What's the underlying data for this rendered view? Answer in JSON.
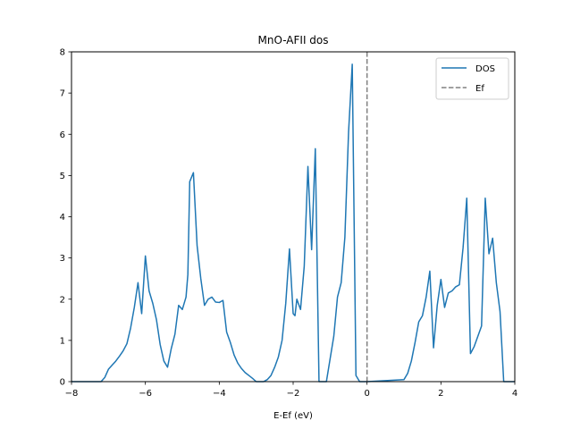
{
  "chart_data": {
    "type": "line",
    "title": "MnO-AFII dos",
    "xlabel": "E-Ef (eV)",
    "ylabel": "",
    "xlim": [
      -8,
      4
    ],
    "ylim": [
      0,
      8
    ],
    "xticks": [
      -8,
      -6,
      -4,
      -2,
      0,
      2,
      4
    ],
    "yticks": [
      0,
      1,
      2,
      3,
      4,
      5,
      6,
      7,
      8
    ],
    "grid": false,
    "legend": {
      "position": "top-right",
      "entries": [
        "DOS",
        "Ef"
      ]
    },
    "colors": {
      "dos": "#1f77b4",
      "ef": "#808080"
    },
    "series": [
      {
        "name": "DOS",
        "x": [
          -8.0,
          -7.2,
          -7.1,
          -7.0,
          -6.9,
          -6.8,
          -6.7,
          -6.6,
          -6.5,
          -6.4,
          -6.3,
          -6.2,
          -6.1,
          -6.0,
          -5.9,
          -5.8,
          -5.7,
          -5.6,
          -5.5,
          -5.4,
          -5.3,
          -5.2,
          -5.1,
          -5.0,
          -4.9,
          -4.85,
          -4.8,
          -4.7,
          -4.6,
          -4.5,
          -4.4,
          -4.3,
          -4.2,
          -4.1,
          -4.0,
          -3.9,
          -3.8,
          -3.7,
          -3.6,
          -3.5,
          -3.4,
          -3.3,
          -3.2,
          -3.1,
          -3.0,
          -2.9,
          -2.8,
          -2.7,
          -2.6,
          -2.5,
          -2.4,
          -2.3,
          -2.2,
          -2.1,
          -2.0,
          -1.95,
          -1.9,
          -1.8,
          -1.7,
          -1.6,
          -1.5,
          -1.4,
          -1.3,
          -1.25,
          -1.2,
          -1.1,
          -1.0,
          -0.9,
          -0.8,
          -0.7,
          -0.6,
          -0.5,
          -0.4,
          -0.3,
          -0.2,
          -0.1,
          -0.05,
          0.0,
          1.0,
          1.1,
          1.2,
          1.3,
          1.4,
          1.5,
          1.6,
          1.7,
          1.8,
          1.9,
          2.0,
          2.1,
          2.2,
          2.3,
          2.4,
          2.5,
          2.6,
          2.7,
          2.8,
          2.9,
          3.0,
          3.1,
          3.2,
          3.3,
          3.4,
          3.5,
          3.6,
          3.7,
          4.0
        ],
        "y": [
          0.0,
          0.0,
          0.1,
          0.3,
          0.4,
          0.5,
          0.62,
          0.75,
          0.92,
          1.3,
          1.8,
          2.4,
          1.65,
          3.05,
          2.2,
          1.9,
          1.5,
          0.9,
          0.5,
          0.35,
          0.8,
          1.15,
          1.85,
          1.75,
          2.05,
          2.6,
          4.85,
          5.07,
          3.3,
          2.5,
          1.85,
          2.0,
          2.05,
          1.93,
          1.92,
          1.97,
          1.2,
          0.95,
          0.65,
          0.45,
          0.32,
          0.22,
          0.15,
          0.08,
          0.0,
          0.0,
          0.0,
          0.05,
          0.15,
          0.35,
          0.6,
          1.0,
          1.9,
          3.22,
          1.65,
          1.6,
          2.0,
          1.75,
          2.8,
          5.22,
          3.2,
          5.65,
          0.0,
          0.0,
          0.0,
          0.0,
          0.55,
          1.1,
          2.05,
          2.4,
          3.5,
          6.05,
          7.7,
          0.15,
          0.0,
          0.0,
          0.0,
          0.0,
          0.05,
          0.2,
          0.5,
          0.95,
          1.45,
          1.6,
          2.05,
          2.68,
          0.82,
          1.85,
          2.48,
          1.8,
          2.15,
          2.2,
          2.3,
          2.35,
          3.25,
          4.45,
          0.68,
          0.85,
          1.1,
          1.35,
          4.45,
          3.1,
          3.48,
          2.4,
          1.7,
          0.0,
          0.0
        ]
      },
      {
        "name": "Ef",
        "x": [
          0.0,
          0.0
        ],
        "y": [
          0,
          8
        ]
      }
    ]
  }
}
